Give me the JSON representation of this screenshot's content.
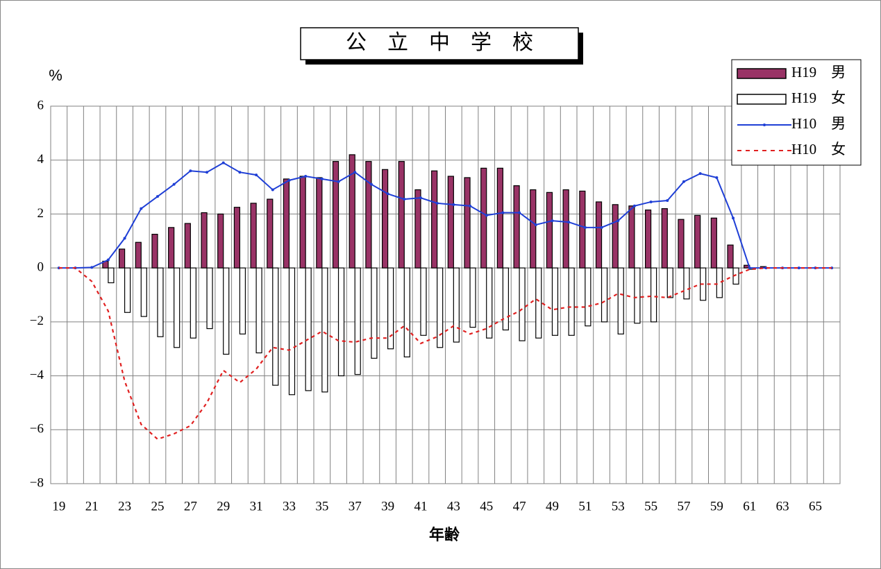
{
  "chart_data": {
    "type": "bar-line",
    "title": "公　立　中　学　校",
    "y_axis_label": "%",
    "x_axis_label": "年齢",
    "categories": [
      "19",
      null,
      "21",
      null,
      "23",
      null,
      "25",
      null,
      "27",
      null,
      "29",
      null,
      "31",
      null,
      "33",
      null,
      "35",
      null,
      "37",
      null,
      "39",
      null,
      "41",
      null,
      "43",
      null,
      "45",
      null,
      "47",
      null,
      "49",
      null,
      "51",
      null,
      "53",
      null,
      "55",
      null,
      "57",
      null,
      "59",
      null,
      "61",
      null,
      "63",
      null,
      "65",
      null
    ],
    "ylim": [
      -8,
      6
    ],
    "yticks": [
      {
        "value": -8,
        "label": "−8"
      },
      {
        "value": -6,
        "label": "−6"
      },
      {
        "value": -4,
        "label": "−4"
      },
      {
        "value": -2,
        "label": "−2"
      },
      0,
      2,
      4,
      6
    ],
    "grid": true,
    "legend": "upper right",
    "series": [
      {
        "name": "H19　男",
        "kind": "bar",
        "color": "#993366",
        "values": [
          0,
          0,
          0,
          0.25,
          0.7,
          0.95,
          1.25,
          1.5,
          1.65,
          2.05,
          2.0,
          2.25,
          2.4,
          2.55,
          3.3,
          3.4,
          3.35,
          3.95,
          4.2,
          3.95,
          3.65,
          3.95,
          2.9,
          3.6,
          3.4,
          3.35,
          3.7,
          3.7,
          3.05,
          2.9,
          2.8,
          2.9,
          2.85,
          2.45,
          2.35,
          2.3,
          2.15,
          2.2,
          1.8,
          1.95,
          1.85,
          0.85,
          0.1,
          0.05,
          0,
          0,
          0,
          0
        ]
      },
      {
        "name": "H19　女",
        "kind": "bar",
        "color": "#ffffff",
        "values": [
          0,
          0,
          0,
          -0.55,
          -1.65,
          -1.8,
          -2.55,
          -2.95,
          -2.6,
          -2.25,
          -3.2,
          -2.45,
          -3.15,
          -4.35,
          -4.7,
          -4.55,
          -4.6,
          -4.0,
          -3.95,
          -3.35,
          -3.0,
          -3.3,
          -2.5,
          -2.95,
          -2.75,
          -2.2,
          -2.6,
          -2.3,
          -2.7,
          -2.6,
          -2.5,
          -2.5,
          -2.15,
          -2.0,
          -2.45,
          -2.05,
          -2.0,
          -1.1,
          -1.15,
          -1.2,
          -1.1,
          -0.6,
          -0.05,
          0,
          0,
          0,
          0,
          0
        ]
      },
      {
        "name": "H10　男",
        "kind": "line",
        "color": "#1f3fd6",
        "values": [
          0,
          0,
          0.02,
          0.3,
          1.1,
          2.2,
          2.65,
          3.1,
          3.6,
          3.55,
          3.9,
          3.55,
          3.45,
          2.9,
          3.25,
          3.4,
          3.3,
          3.2,
          3.55,
          3.1,
          2.75,
          2.55,
          2.6,
          2.4,
          2.35,
          2.3,
          1.95,
          2.05,
          2.05,
          1.6,
          1.75,
          1.7,
          1.5,
          1.5,
          1.75,
          2.3,
          2.45,
          2.5,
          3.2,
          3.5,
          3.35,
          1.85,
          0,
          0,
          0,
          0,
          0,
          0
        ]
      },
      {
        "name": "H10　女",
        "kind": "dashed-line",
        "color": "#e02020",
        "values": [
          0,
          0,
          -0.5,
          -1.6,
          -4.2,
          -5.8,
          -6.35,
          -6.15,
          -5.85,
          -5.0,
          -3.8,
          -4.25,
          -3.75,
          -2.95,
          -3.05,
          -2.7,
          -2.35,
          -2.7,
          -2.75,
          -2.6,
          -2.6,
          -2.15,
          -2.8,
          -2.55,
          -2.15,
          -2.45,
          -2.25,
          -1.9,
          -1.6,
          -1.15,
          -1.55,
          -1.45,
          -1.45,
          -1.3,
          -0.95,
          -1.1,
          -1.05,
          -1.1,
          -0.85,
          -0.6,
          -0.6,
          -0.3,
          -0.05,
          0,
          0,
          0,
          0,
          0
        ]
      }
    ]
  }
}
